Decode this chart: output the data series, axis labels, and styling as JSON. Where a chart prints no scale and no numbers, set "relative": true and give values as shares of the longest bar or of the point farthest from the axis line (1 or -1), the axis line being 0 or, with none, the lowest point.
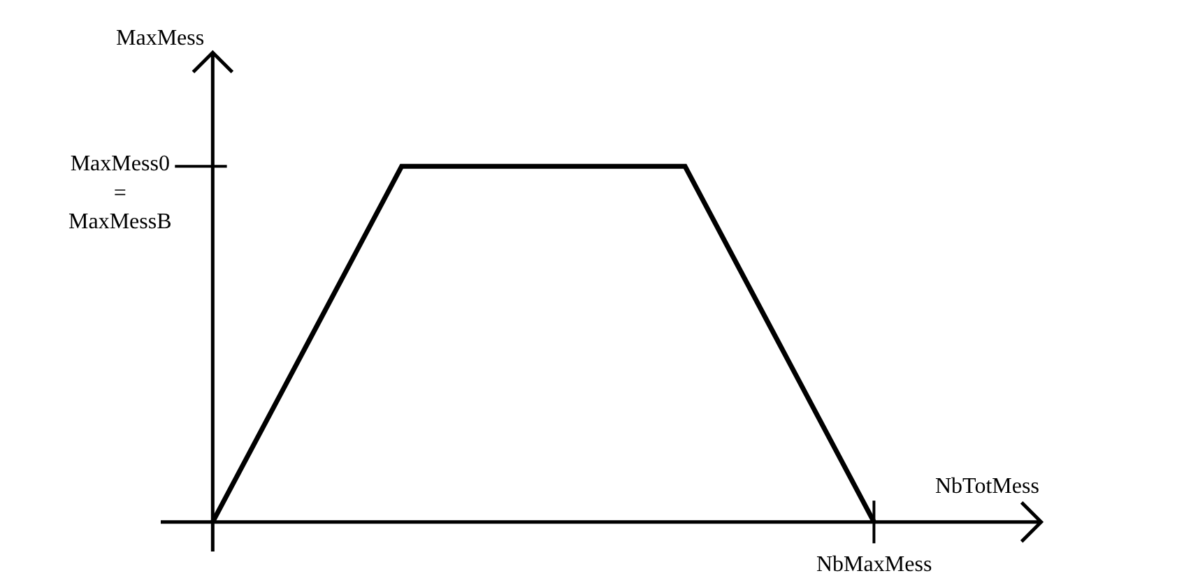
{
  "chart_data": {
    "type": "line",
    "relative": true,
    "xlabel": "NbTotMess",
    "categories": [
      null,
      null,
      null,
      null,
      null,
      null,
      null,
      null
    ],
    "series": [
      {
        "color": "#000000",
        "values": [
          0,
          0.5,
          1,
          1,
          1,
          1,
          0.5,
          0
        ]
      }
    ],
    "annotations": [
      "MaxMess",
      "MaxMess0\n=\nMaxMessB",
      "NbMaxMess"
    ],
    "marker": "none",
    "line_style": "solid"
  }
}
